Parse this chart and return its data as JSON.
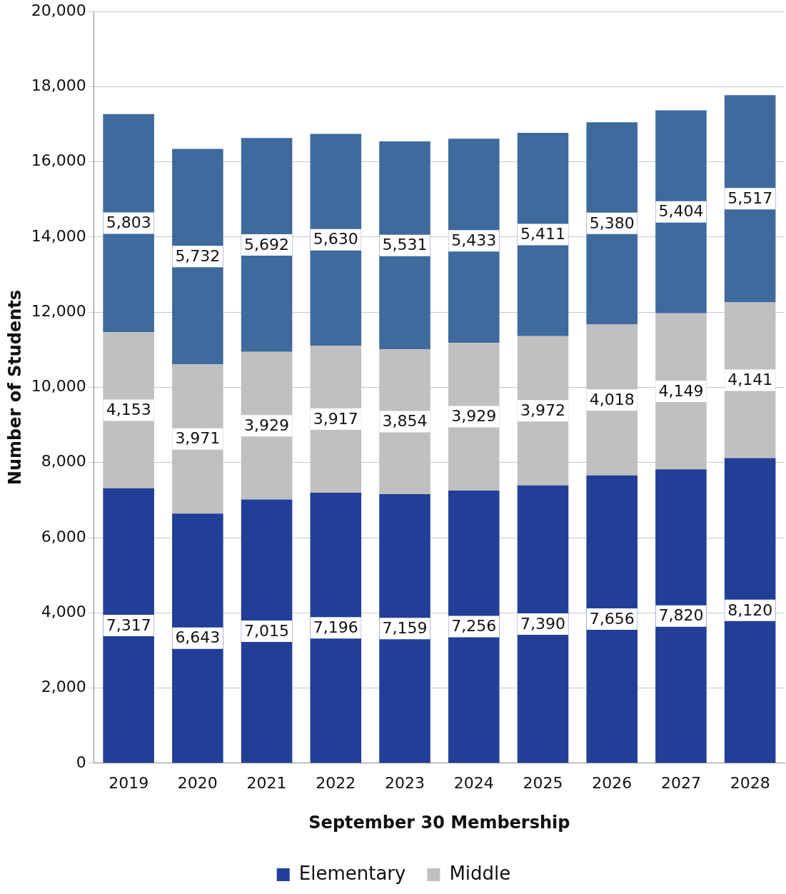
{
  "chart_data": {
    "type": "bar",
    "stacked": true,
    "xlabel": "September 30 Membership",
    "ylabel": "Number of Students",
    "categories": [
      "2019",
      "2020",
      "2021",
      "2022",
      "2023",
      "2024",
      "2025",
      "2026",
      "2027",
      "2028"
    ],
    "series": [
      {
        "name": "Elementary",
        "color": "#223f97",
        "values": [
          7317,
          6643,
          7015,
          7196,
          7159,
          7256,
          7390,
          7656,
          7820,
          8120
        ],
        "value_labels": [
          "7,317",
          "6,643",
          "7,015",
          "7,196",
          "7,159",
          "7,256",
          "7,390",
          "7,656",
          "7,820",
          "8,120"
        ]
      },
      {
        "name": "Middle",
        "color": "#c0c0c0",
        "values": [
          4153,
          3971,
          3929,
          3917,
          3854,
          3929,
          3972,
          4018,
          4149,
          4141
        ],
        "value_labels": [
          "4,153",
          "3,971",
          "3,929",
          "3,917",
          "3,854",
          "3,929",
          "3,972",
          "4,018",
          "4,149",
          "4,141"
        ]
      },
      {
        "color": "#3e6a9e",
        "values": [
          5803,
          5732,
          5692,
          5630,
          5531,
          5433,
          5411,
          5380,
          5404,
          5517
        ],
        "value_labels": [
          "5,803",
          "5,732",
          "5,692",
          "5,630",
          "5,531",
          "5,433",
          "5,411",
          "5,380",
          "5,404",
          "5,517"
        ]
      }
    ],
    "ylim": [
      0,
      20000
    ],
    "yticks": [
      0,
      {
        "value": 2000,
        "label": "2,000"
      },
      {
        "value": 4000,
        "label": "4,000"
      },
      {
        "value": 6000,
        "label": "6,000"
      },
      {
        "value": 8000,
        "label": "8,000"
      },
      {
        "value": 10000,
        "label": "10,000"
      },
      {
        "value": 12000,
        "label": "12,000"
      },
      {
        "value": 14000,
        "label": "14,000"
      },
      {
        "value": 16000,
        "label": "16,000"
      },
      {
        "value": 18000,
        "label": "18,000"
      },
      {
        "value": 20000,
        "label": "20,000"
      }
    ],
    "grid": "y",
    "legend": "bottom"
  }
}
